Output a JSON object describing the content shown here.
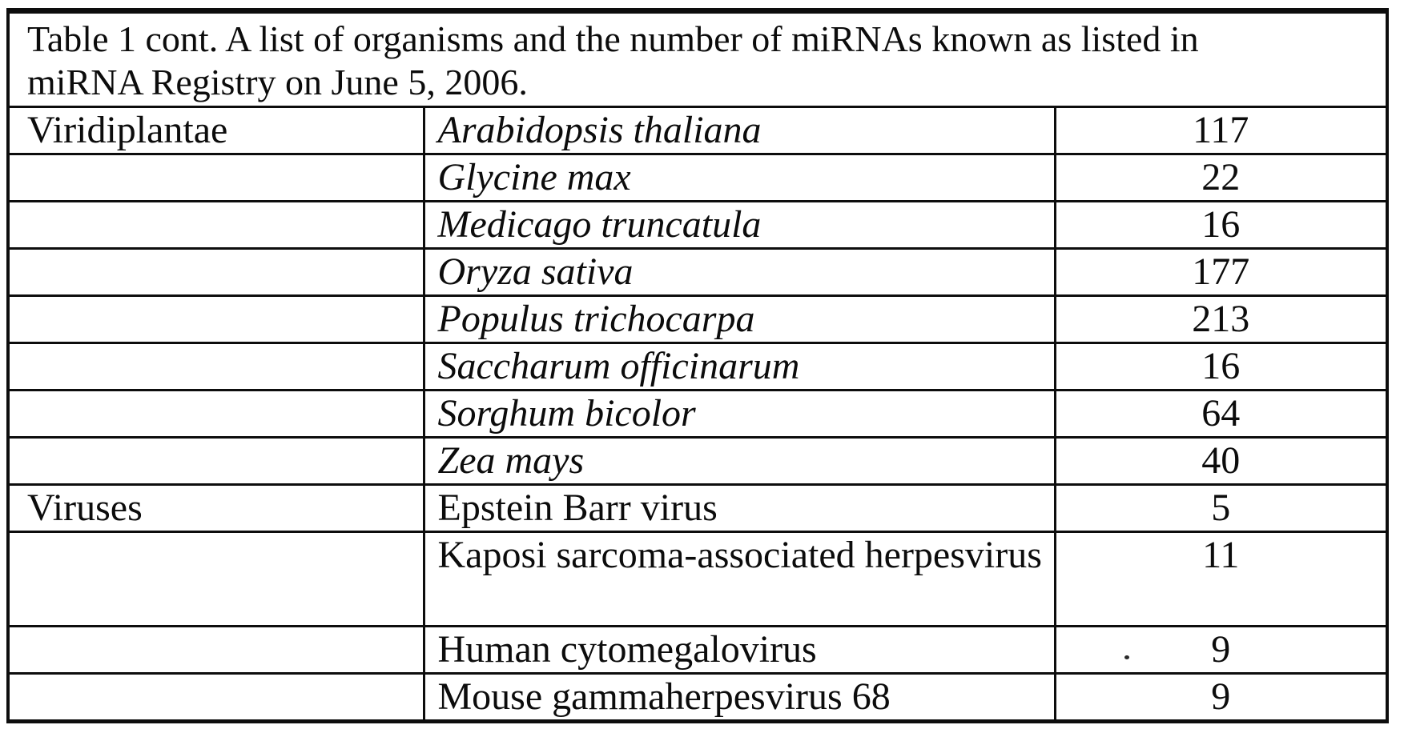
{
  "page": {
    "background_color": "#ffffff",
    "ink_color": "#0c0c0c"
  },
  "title": {
    "full": "Table 1 cont. A list of organisms and the number of miRNAs known as listed in miRNA Registry on June 5, 2006.",
    "line1": "Table 1 cont. A list of organisms and the number of miRNAs known as listed in",
    "line2": "miRNA Registry on June 5, 2006."
  },
  "table": {
    "columns": [
      "group",
      "organism",
      "mirna_count"
    ],
    "rows": [
      {
        "group": "Viridiplantae",
        "organism": "Arabidopsis thaliana",
        "count": "117",
        "italic": true,
        "tall": false
      },
      {
        "group": "",
        "organism": "Glycine max",
        "count": "22",
        "italic": true,
        "tall": false
      },
      {
        "group": "",
        "organism": "Medicago truncatula",
        "count": "16",
        "italic": true,
        "tall": false
      },
      {
        "group": "",
        "organism": "Oryza sativa",
        "count": "177",
        "italic": true,
        "tall": false
      },
      {
        "group": "",
        "organism": "Populus trichocarpa",
        "count": "213",
        "italic": true,
        "tall": false
      },
      {
        "group": "",
        "organism": "Saccharum officinarum",
        "count": "16",
        "italic": true,
        "tall": false
      },
      {
        "group": "",
        "organism": "Sorghum bicolor",
        "count": "64",
        "italic": true,
        "tall": false
      },
      {
        "group": "",
        "organism": "Zea mays",
        "count": "40",
        "italic": true,
        "tall": false
      },
      {
        "group": "Viruses",
        "organism": "Epstein Barr virus",
        "count": "5",
        "italic": false,
        "tall": false
      },
      {
        "group": "",
        "organism": "Kaposi sarcoma-associated herpesvirus",
        "count": "11",
        "italic": false,
        "tall": true
      },
      {
        "group": "",
        "organism": "Human cytomegalovirus",
        "count": "9",
        "italic": false,
        "tall": false
      },
      {
        "group": "",
        "organism": "Mouse gammaherpesvirus 68",
        "count": "9",
        "italic": false,
        "tall": false
      }
    ]
  }
}
